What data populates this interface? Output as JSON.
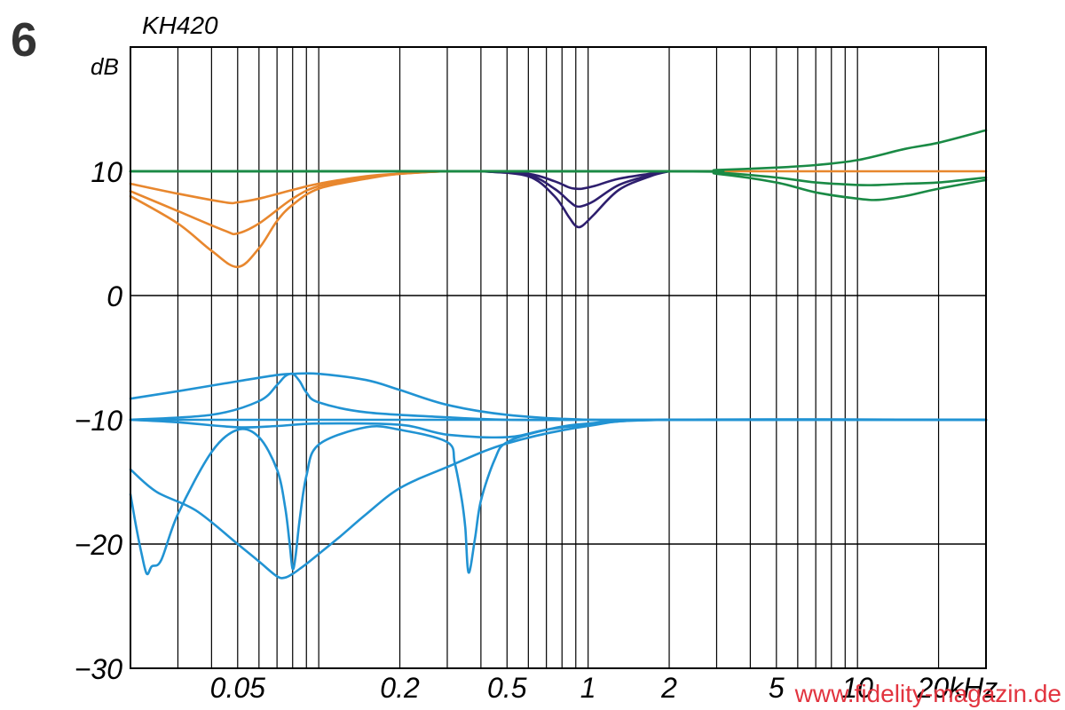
{
  "figure_number": "6",
  "watermark": "www.fidelity-magazin.de",
  "chart_data": {
    "type": "line",
    "title": "KH420",
    "ylabel": "dB",
    "xlabel": "",
    "x_scale": "log",
    "xlim": [
      0.02,
      30
    ],
    "ylim": [
      -30,
      20
    ],
    "grid": true,
    "x_ticks": [
      {
        "value": 0.05,
        "label": "0.05"
      },
      {
        "value": 0.2,
        "label": "0.2"
      },
      {
        "value": 0.5,
        "label": "0.5"
      },
      {
        "value": 1,
        "label": "1"
      },
      {
        "value": 2,
        "label": "2"
      },
      {
        "value": 5,
        "label": "5"
      },
      {
        "value": 10,
        "label": "10"
      },
      {
        "value": 20,
        "label": "20kHz"
      }
    ],
    "y_ticks": [
      {
        "value": 10,
        "label": "10"
      },
      {
        "value": 0,
        "label": "0"
      },
      {
        "value": -10,
        "label": "−10"
      },
      {
        "value": -20,
        "label": "−20"
      },
      {
        "value": -30,
        "label": "−30"
      }
    ],
    "colors": {
      "orange": "#e8872e",
      "navy": "#2e1f6e",
      "green": "#1a8a45",
      "blue": "#2193d3"
    },
    "series": [
      {
        "color": "orange",
        "x": [
          0.02,
          0.03,
          0.045,
          0.05,
          0.06,
          0.08,
          0.1,
          0.15,
          0.2,
          0.3,
          0.5
        ],
        "y": [
          9.0,
          8.2,
          7.5,
          7.5,
          7.8,
          8.5,
          9.0,
          9.6,
          9.8,
          10,
          10
        ]
      },
      {
        "color": "orange",
        "x": [
          0.02,
          0.03,
          0.045,
          0.05,
          0.06,
          0.08,
          0.1,
          0.15,
          0.2,
          0.3,
          0.5
        ],
        "y": [
          8.4,
          6.8,
          5.2,
          5.0,
          5.8,
          7.8,
          8.8,
          9.5,
          9.8,
          10,
          10
        ]
      },
      {
        "color": "orange",
        "x": [
          0.02,
          0.03,
          0.04,
          0.05,
          0.06,
          0.07,
          0.08,
          0.1,
          0.15,
          0.2,
          0.3,
          0.5
        ],
        "y": [
          8.0,
          5.8,
          3.6,
          2.3,
          3.8,
          6.0,
          7.3,
          8.6,
          9.4,
          9.8,
          10,
          10
        ]
      },
      {
        "color": "orange",
        "x": [
          0.3,
          1,
          5,
          30
        ],
        "y": [
          10,
          10,
          10,
          10
        ]
      },
      {
        "color": "navy",
        "x": [
          0.4,
          0.6,
          0.75,
          0.85,
          0.9,
          0.95,
          1.05,
          1.3,
          1.7,
          2
        ],
        "y": [
          10,
          9.8,
          9.2,
          8.7,
          8.6,
          8.6,
          8.8,
          9.4,
          9.8,
          10
        ]
      },
      {
        "color": "navy",
        "x": [
          0.4,
          0.6,
          0.75,
          0.85,
          0.9,
          0.95,
          1.05,
          1.3,
          1.7,
          2
        ],
        "y": [
          10,
          9.7,
          8.6,
          7.6,
          7.2,
          7.2,
          7.6,
          8.9,
          9.7,
          10
        ]
      },
      {
        "color": "navy",
        "x": [
          0.4,
          0.6,
          0.75,
          0.85,
          0.9,
          0.95,
          1.05,
          1.3,
          1.7,
          2
        ],
        "y": [
          10,
          9.6,
          8.0,
          6.3,
          5.6,
          5.6,
          6.5,
          8.5,
          9.6,
          10
        ]
      },
      {
        "color": "green",
        "x": [
          0.02,
          2,
          3,
          5,
          7,
          10,
          15,
          20,
          30
        ],
        "y": [
          10,
          10,
          10.1,
          10.3,
          10.5,
          10.9,
          11.8,
          12.3,
          13.3
        ]
      },
      {
        "color": "green",
        "x": [
          0.02,
          2,
          3,
          5,
          7,
          10,
          12,
          15,
          20,
          30
        ],
        "y": [
          10,
          10,
          9.9,
          9.5,
          9.1,
          8.9,
          8.9,
          9.0,
          9.1,
          9.5
        ]
      },
      {
        "color": "green",
        "x": [
          0.02,
          2,
          3,
          5,
          7,
          10,
          12,
          15,
          20,
          30
        ],
        "y": [
          10,
          10,
          9.8,
          9.1,
          8.3,
          7.8,
          7.7,
          8.0,
          8.6,
          9.3
        ]
      },
      {
        "color": "blue",
        "x": [
          0.02,
          0.03,
          0.05,
          0.07,
          0.08,
          0.1,
          0.15,
          0.2,
          0.3,
          0.5,
          1,
          2,
          30
        ],
        "y": [
          -8.3,
          -7.7,
          -6.9,
          -6.4,
          -6.3,
          -6.3,
          -6.8,
          -7.6,
          -8.8,
          -9.6,
          -10,
          -10,
          -10
        ]
      },
      {
        "color": "blue",
        "x": [
          0.02,
          0.04,
          0.06,
          0.07,
          0.075,
          0.08,
          0.085,
          0.09,
          0.1,
          0.15,
          0.3,
          0.5,
          1,
          30
        ],
        "y": [
          -10,
          -9.6,
          -8.5,
          -7.2,
          -6.5,
          -6.3,
          -6.9,
          -7.8,
          -8.6,
          -9.4,
          -9.8,
          -10,
          -10,
          -10
        ]
      },
      {
        "color": "blue",
        "x": [
          0.02,
          0.05,
          0.08,
          0.2,
          1,
          30
        ],
        "y": [
          -10,
          -10,
          -10,
          -10,
          -10,
          -10
        ]
      },
      {
        "color": "blue",
        "x": [
          0.02,
          0.03,
          0.05,
          0.07,
          0.1,
          0.2,
          0.3,
          0.5,
          0.7,
          1,
          2,
          30
        ],
        "y": [
          -10,
          -10.2,
          -10.6,
          -10.5,
          -10.3,
          -10.4,
          -11.2,
          -11.4,
          -10.8,
          -10.4,
          -10,
          -10
        ]
      },
      {
        "color": "blue",
        "x": [
          0.02,
          0.025,
          0.035,
          0.05,
          0.06,
          0.07,
          0.075,
          0.08,
          0.085,
          0.09,
          0.1,
          0.12,
          0.15,
          0.2,
          0.3,
          0.5,
          1,
          2,
          30
        ],
        "y": [
          -14,
          -15.8,
          -17.3,
          -20.0,
          -21.4,
          -22.6,
          -22.7,
          -22.4,
          -22.0,
          -21.6,
          -20.8,
          -19.4,
          -17.6,
          -15.5,
          -13.8,
          -11.9,
          -10.5,
          -10,
          -10
        ]
      },
      {
        "color": "blue",
        "x": [
          0.02,
          0.021,
          0.022,
          0.023,
          0.024,
          0.026,
          0.03,
          0.04,
          0.05,
          0.06,
          0.07,
          0.075,
          0.078,
          0.08,
          0.082,
          0.085,
          0.09,
          0.1,
          0.15,
          0.2,
          0.3,
          0.32,
          0.34,
          0.35,
          0.36,
          0.38,
          0.4,
          0.45,
          0.5,
          0.7,
          1,
          2,
          30
        ],
        "y": [
          -16,
          -18.6,
          -20.8,
          -22.4,
          -21.8,
          -21.3,
          -17.6,
          -12.6,
          -10.8,
          -11.4,
          -14,
          -17,
          -20,
          -22,
          -21,
          -18,
          -14.5,
          -12,
          -10.6,
          -10.8,
          -11.8,
          -13.5,
          -16.5,
          -18.7,
          -22.3,
          -19.6,
          -16.5,
          -13.2,
          -11.8,
          -10.8,
          -10.3,
          -10,
          -10
        ]
      }
    ]
  }
}
